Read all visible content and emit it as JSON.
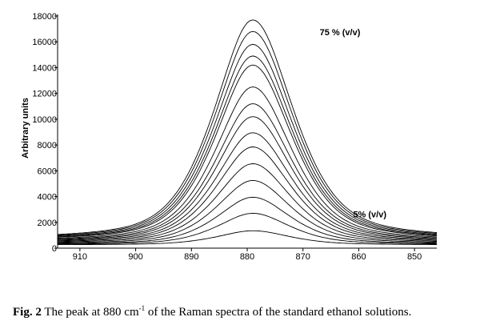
{
  "chart_data": {
    "type": "line",
    "title": "",
    "xlabel": "",
    "ylabel": "Arbitrary units",
    "xlim": [
      914,
      846
    ],
    "ylim": [
      0,
      18000
    ],
    "x_ticks": [
      910,
      900,
      890,
      880,
      870,
      860,
      850
    ],
    "y_ticks": [
      0,
      2000,
      4000,
      6000,
      8000,
      10000,
      12000,
      14000,
      16000,
      18000
    ],
    "y_tick_labels": [
      "0",
      "2000",
      "4000",
      "6000",
      "8000",
      "10000",
      "12000",
      "14000",
      "16000",
      "18000"
    ],
    "annotations": [
      {
        "text": "75 % (v/v)",
        "x": 867,
        "y": 16500
      },
      {
        "text": "5% (v/v)",
        "x": 861,
        "y": 2400
      }
    ],
    "peak_center": 879,
    "series": [
      {
        "peak": 1350,
        "base": 250
      },
      {
        "peak": 2700,
        "base": 270
      },
      {
        "peak": 3950,
        "base": 290
      },
      {
        "peak": 5250,
        "base": 320
      },
      {
        "peak": 6550,
        "base": 350
      },
      {
        "peak": 7850,
        "base": 380
      },
      {
        "peak": 8950,
        "base": 410
      },
      {
        "peak": 10200,
        "base": 440
      },
      {
        "peak": 11200,
        "base": 470
      },
      {
        "peak": 12500,
        "base": 500
      },
      {
        "peak": 14200,
        "base": 530
      },
      {
        "peak": 14900,
        "base": 560
      },
      {
        "peak": 15800,
        "base": 590
      },
      {
        "peak": 16800,
        "base": 620
      },
      {
        "peak": 17700,
        "base": 650
      }
    ]
  },
  "caption": {
    "label": "Fig. 2",
    "text_before": "The peak at 880 cm",
    "superscript": "-1",
    "text_after": " of the Raman spectra of the standard ethanol solutions."
  }
}
